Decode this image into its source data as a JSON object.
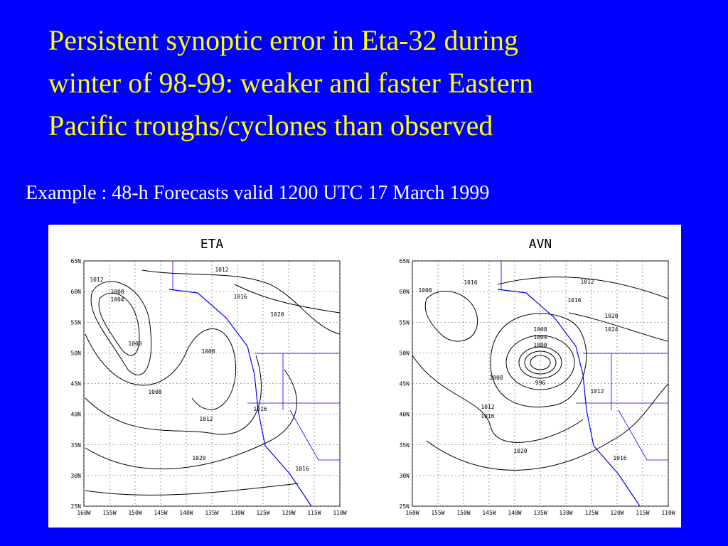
{
  "header": {
    "title": [
      "Persistent synoptic error in Eta-32 during",
      "winter of 98-99: weaker and faster Eastern",
      "Pacific troughs/cyclones than observed"
    ],
    "subtitle": "Example : 48-h Forecasts valid 1200 UTC 17 March 1999"
  },
  "maps": [
    {
      "title": "ETA",
      "lat_labels": [
        "65N",
        "60N",
        "55N",
        "50N",
        "45N",
        "40N",
        "35N",
        "30N",
        "25N"
      ],
      "lon_labels": [
        "160W",
        "155W",
        "150W",
        "145W",
        "140W",
        "135W",
        "130W",
        "125W",
        "120W",
        "115W",
        "110W"
      ],
      "contour_labels": [
        "1012",
        "1012",
        "1008",
        "1004",
        "1000",
        "1008",
        "1016",
        "1020",
        "1008",
        "1012",
        "1016",
        "1020",
        "1016"
      ]
    },
    {
      "title": "AVN",
      "lat_labels": [
        "65N",
        "60N",
        "55N",
        "50N",
        "45N",
        "40N",
        "35N",
        "30N",
        "25N"
      ],
      "lon_labels": [
        "160W",
        "155W",
        "150W",
        "145W",
        "140W",
        "135W",
        "130W",
        "125W",
        "120W",
        "115W",
        "110W"
      ],
      "contour_labels": [
        "1008",
        "1016",
        "1012",
        "1016",
        "1020",
        "1024",
        "1008",
        "1004",
        "1000",
        "996",
        "1008",
        "1012",
        "1012",
        "1016",
        "1020",
        "1016"
      ]
    }
  ]
}
